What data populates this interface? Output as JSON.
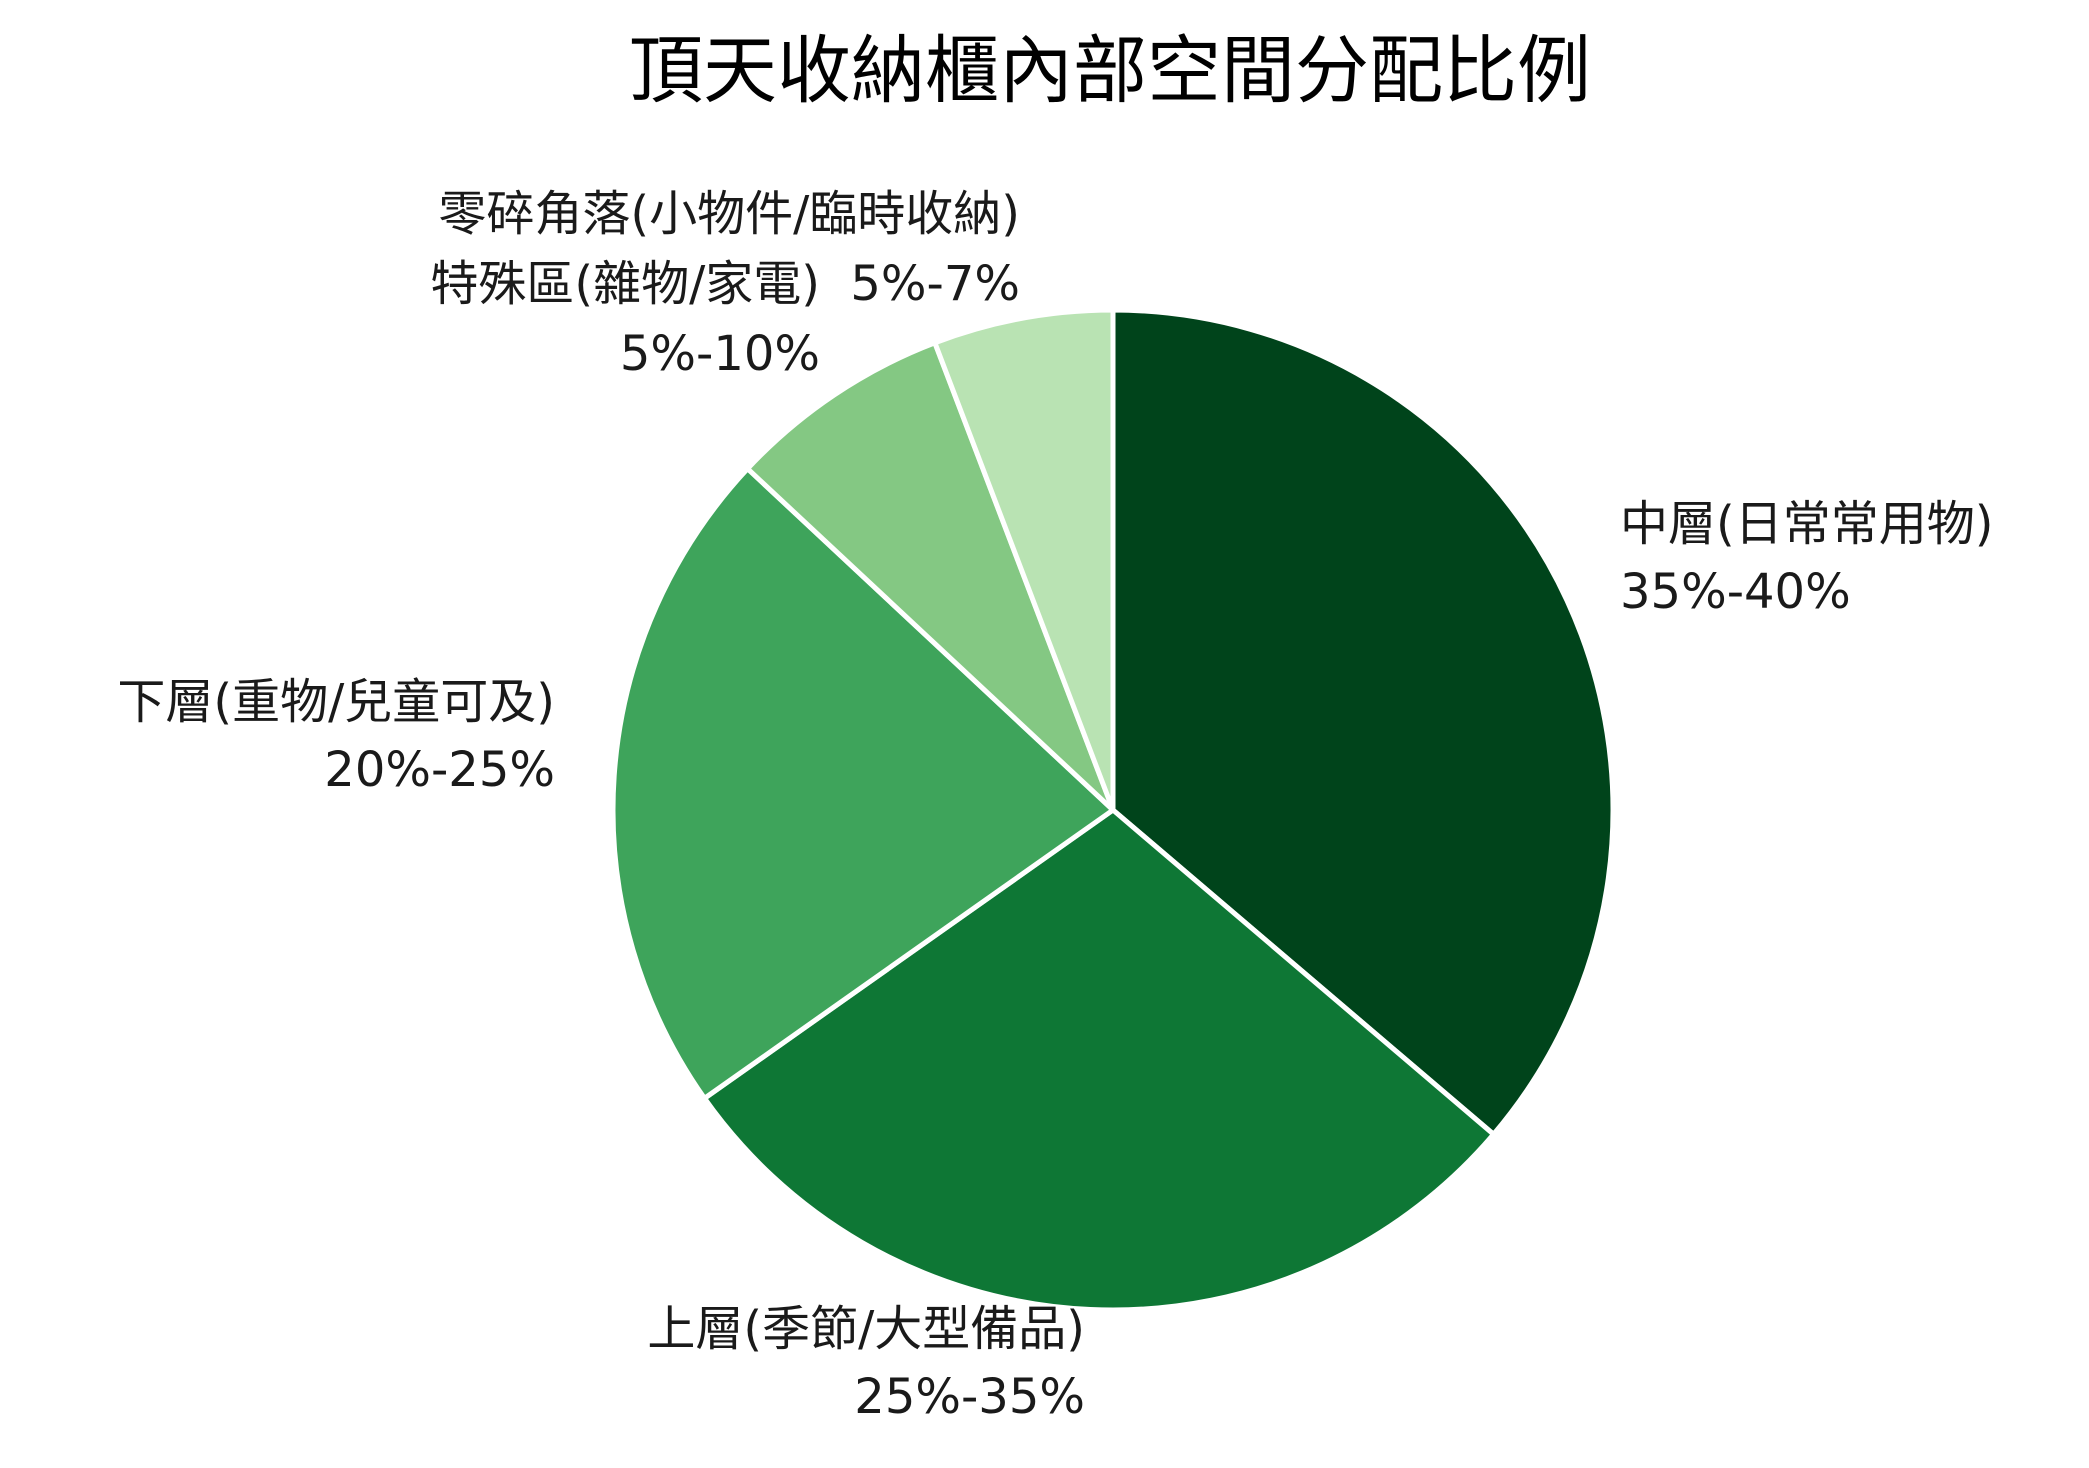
{
  "chart_data": {
    "type": "pie",
    "title": "頂天收納櫃內部空間分配比例",
    "slices": [
      {
        "name": "中層(日常常用物)",
        "range_label": "35%-40%",
        "value": 37.5,
        "color": "#00441b"
      },
      {
        "name": "上層(季節/大型備品)",
        "range_label": "25%-35%",
        "value": 30,
        "color": "#0e7735"
      },
      {
        "name": "下層(重物/兒童可及)",
        "range_label": "20%-25%",
        "value": 22.5,
        "color": "#3ea45b"
      },
      {
        "name": "特殊區(雜物/家電)",
        "range_label": "5%-10%",
        "value": 7.5,
        "color": "#84c883"
      },
      {
        "name": "零碎角落(小物件/臨時收納)",
        "range_label": "5%-7%",
        "value": 6,
        "color": "#b9e3b3"
      }
    ],
    "start_angle": "top",
    "direction": "clockwise",
    "edge_color": "#ffffff",
    "legend": "none"
  }
}
